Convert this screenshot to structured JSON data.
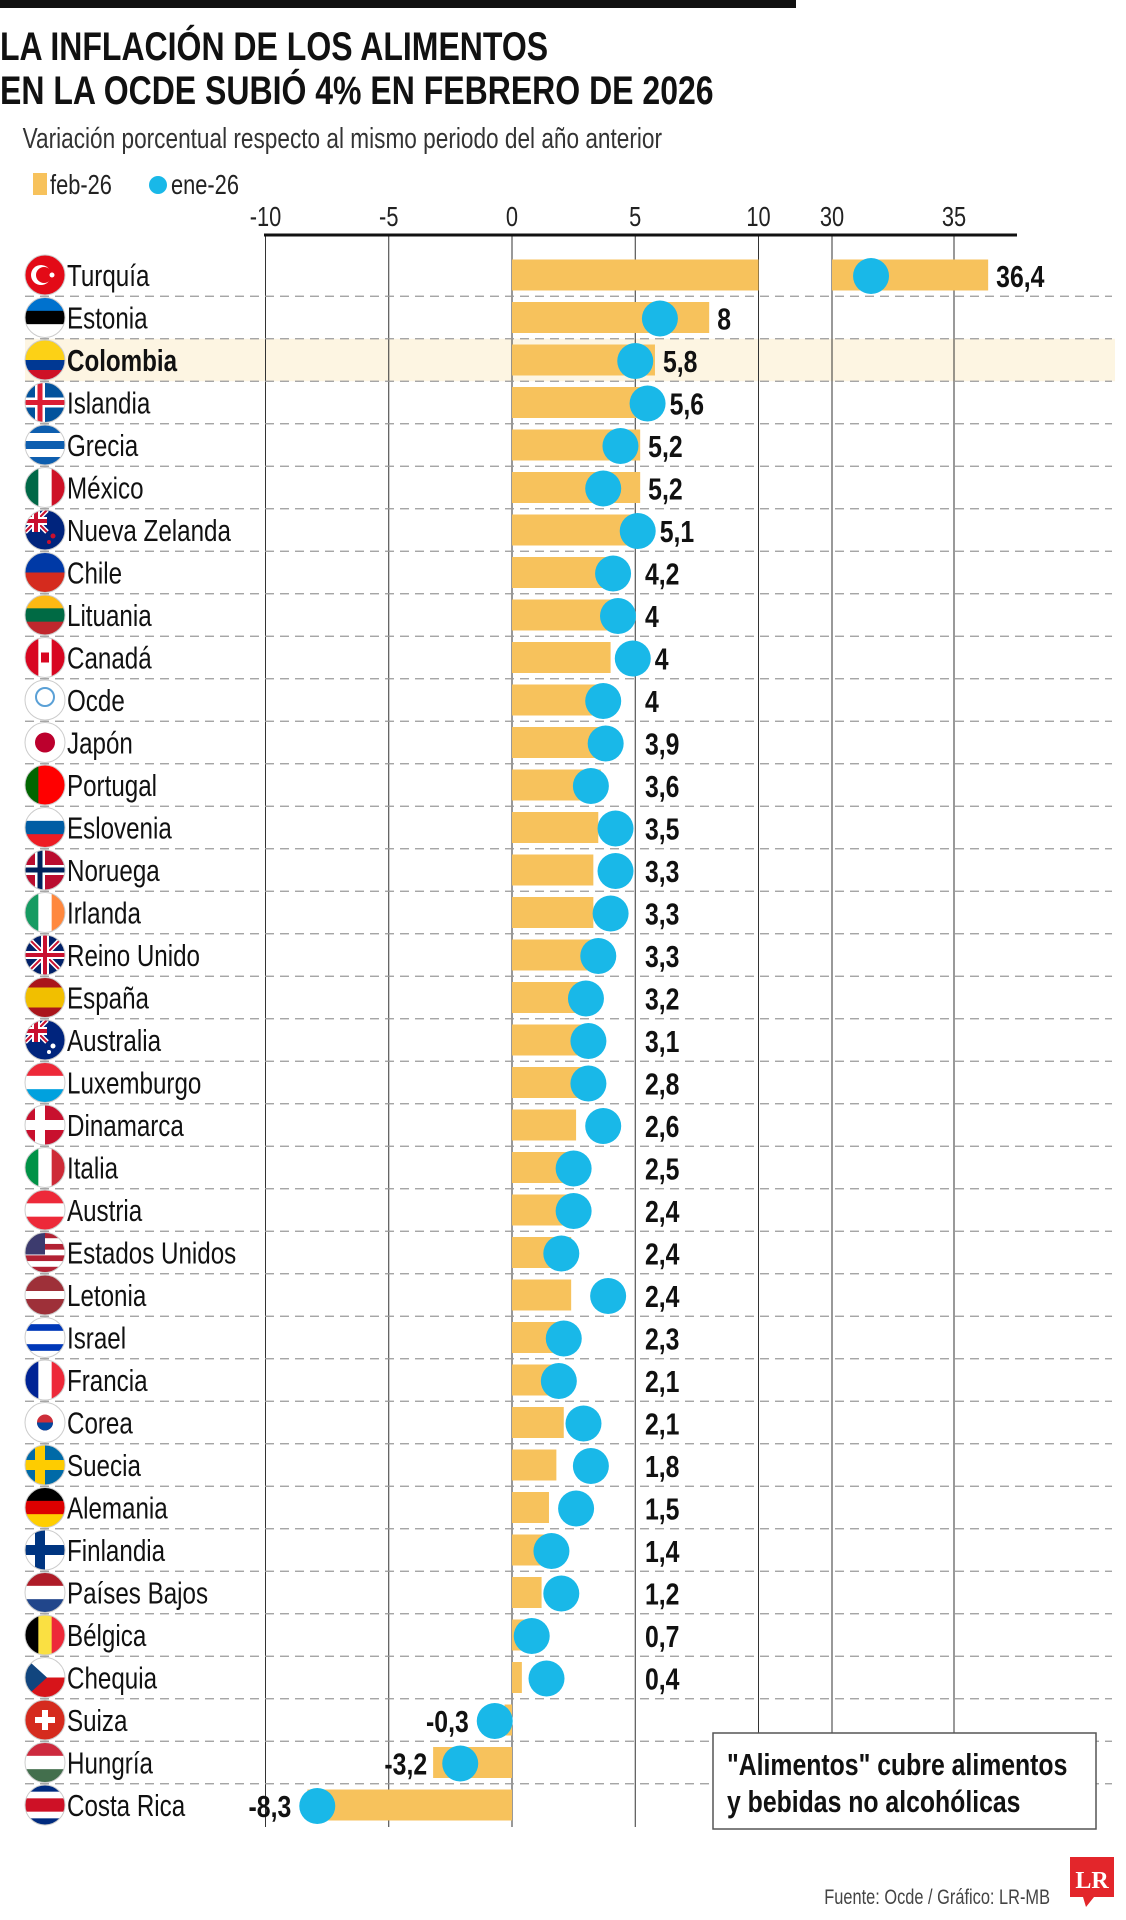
{
  "title_line1": "LA INFLACIÓN DE LOS ALIMENTOS",
  "title_line2": "EN LA OCDE SUBIÓ 4% EN FEBRERO DE 2026",
  "subtitle": "Variación porcentual respecto al mismo periodo del año anterior",
  "note": [
    "\"Alimentos\" cubre alimentos",
    "y bebidas no alcohólicas"
  ],
  "source": "Fuente: Ocde / Gráfico: LR-MB",
  "logo_text": "LR",
  "colors": {
    "feb": "#F7C25C",
    "ene": "#19B8E8",
    "highlight": "#FDF5E2",
    "logo": "#E3262B"
  },
  "chart_data": {
    "type": "bar",
    "orientation": "horizontal",
    "axis_break": [
      10,
      30
    ],
    "xlim": [
      -10,
      37
    ],
    "x_ticks": [
      "-10",
      "-5",
      "0",
      "5",
      "10",
      "30",
      "35"
    ],
    "x_tick_values": [
      -10,
      -5,
      0,
      5,
      10,
      30,
      35
    ],
    "grid": "vertical",
    "legend_position": "top-left",
    "highlight": "Colombia",
    "series": [
      {
        "name": "feb-26",
        "mark": "bar"
      },
      {
        "name": "ene-26",
        "mark": "dot"
      }
    ],
    "categories": [
      "Turquía",
      "Estonia",
      "Colombia",
      "Islandia",
      "Grecia",
      "México",
      "Nueva Zelanda",
      "Chile",
      "Lituania",
      "Canadá",
      "Ocde",
      "Japón",
      "Portugal",
      "Eslovenia",
      "Noruega",
      "Irlanda",
      "Reino Unido",
      "España",
      "Australia",
      "Luxemburgo",
      "Dinamarca",
      "Italia",
      "Austria",
      "Estados Unidos",
      "Letonia",
      "Israel",
      "Francia",
      "Corea",
      "Suecia",
      "Alemania",
      "Finlandia",
      "Países Bajos",
      "Bélgica",
      "Chequia",
      "Suiza",
      "Hungría",
      "Costa Rica"
    ],
    "feb_labels": [
      "36,4",
      "8",
      "5,8",
      "5,6",
      "5,2",
      "5,2",
      "5,1",
      "4,2",
      "4",
      "4",
      "4",
      "3,9",
      "3,6",
      "3,5",
      "3,3",
      "3,3",
      "3,3",
      "3,2",
      "3,1",
      "2,8",
      "2,6",
      "2,5",
      "2,4",
      "2,4",
      "2,4",
      "2,3",
      "2,1",
      "2,1",
      "1,8",
      "1,5",
      "1,4",
      "1,2",
      "0,7",
      "0,4",
      "-0,3",
      "-3,2",
      "-8,3"
    ],
    "feb_values": [
      36.4,
      8,
      5.8,
      5.6,
      5.2,
      5.2,
      5.1,
      4.2,
      4,
      4,
      4,
      3.9,
      3.6,
      3.5,
      3.3,
      3.3,
      3.3,
      3.2,
      3.1,
      2.8,
      2.6,
      2.5,
      2.4,
      2.4,
      2.4,
      2.3,
      2.1,
      2.1,
      1.8,
      1.5,
      1.4,
      1.2,
      0.7,
      0.4,
      -0.3,
      -3.2,
      -8.3
    ],
    "ene_values": [
      31.6,
      6.0,
      5.0,
      5.5,
      4.4,
      3.7,
      5.1,
      4.1,
      4.3,
      4.9,
      3.7,
      3.8,
      3.2,
      4.2,
      4.2,
      4.0,
      3.5,
      3.0,
      3.1,
      3.1,
      3.7,
      2.5,
      2.5,
      2.0,
      3.9,
      2.1,
      1.9,
      2.9,
      3.2,
      2.6,
      1.6,
      2.0,
      0.8,
      1.4,
      -0.7,
      -2.1,
      -7.9
    ],
    "flags": [
      "turkey",
      "estonia",
      "colombia",
      "iceland",
      "greece",
      "mexico",
      "new-zealand",
      "chile",
      "lithuania",
      "canada",
      "oecd",
      "japan",
      "portugal",
      "slovenia",
      "norway",
      "ireland",
      "uk",
      "spain",
      "australia",
      "luxembourg",
      "denmark",
      "italy",
      "austria",
      "usa",
      "latvia",
      "israel",
      "france",
      "korea",
      "sweden",
      "germany",
      "finland",
      "netherlands",
      "belgium",
      "czechia",
      "switzerland",
      "hungary",
      "costa-rica"
    ]
  }
}
